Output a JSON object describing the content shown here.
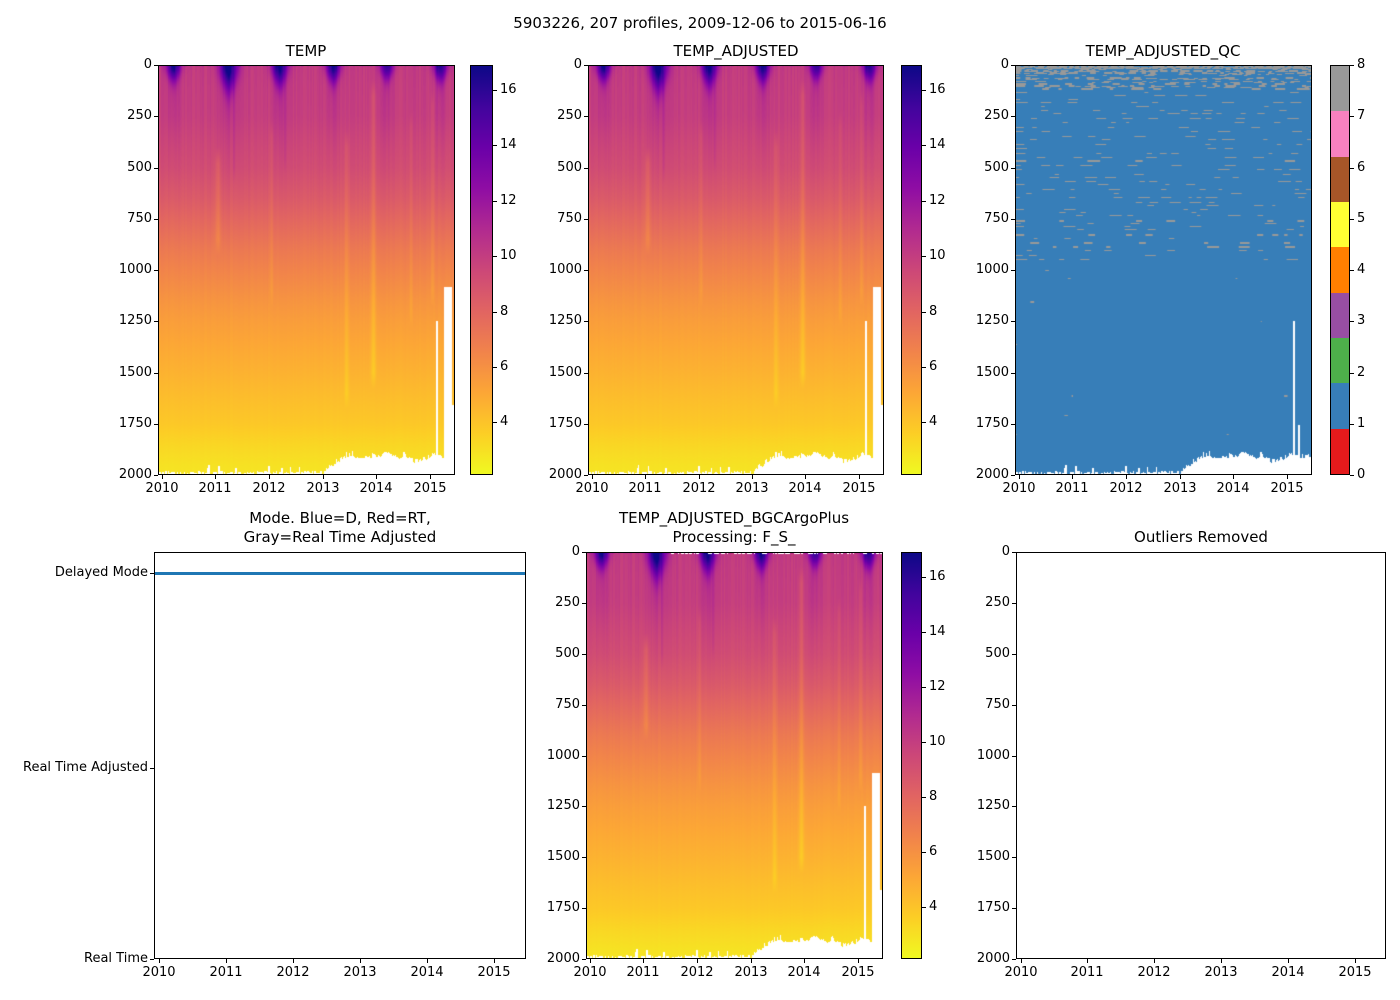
{
  "suptitle": "5903226, 207 profiles, 2009-12-06 to 2015-06-16",
  "colors": {
    "line_blue": "#1f77b4",
    "qc_base_blue": "#377eb8",
    "qc_dash_gray": "#999999",
    "axis_black": "#000000",
    "qc_colorbar_colors_bottom_to_top": [
      "#e41a1c",
      "#377eb8",
      "#4daf4a",
      "#984ea3",
      "#ff7f00",
      "#ffff33",
      "#a65628",
      "#f781bf",
      "#999999"
    ],
    "plasma_stops": [
      [
        0,
        "#0d0887"
      ],
      [
        0.1,
        "#41049d"
      ],
      [
        0.2,
        "#6a00a8"
      ],
      [
        0.3,
        "#8f0da4"
      ],
      [
        0.4,
        "#b12a90"
      ],
      [
        0.5,
        "#cc4778"
      ],
      [
        0.6,
        "#e16462"
      ],
      [
        0.7,
        "#f1834b"
      ],
      [
        0.8,
        "#fca636"
      ],
      [
        0.9,
        "#fcce25"
      ],
      [
        1,
        "#f0f921"
      ]
    ]
  },
  "chart_data": [
    {
      "id": "temp",
      "type": "heatmap",
      "title": "TEMP",
      "xlim": [
        2009.93,
        2015.47
      ],
      "x_ticks": [
        2010,
        2011,
        2012,
        2013,
        2014,
        2015
      ],
      "ylim": [
        0,
        2000
      ],
      "y_ticks": [
        0,
        250,
        500,
        750,
        1000,
        1250,
        1500,
        1750,
        2000
      ],
      "colorbar": {
        "vmin": 2.1,
        "vmax": 16.9,
        "ticks": [
          4,
          6,
          8,
          10,
          12,
          14,
          16
        ],
        "colormap": "plasma_r"
      },
      "n_profiles": 207,
      "depth_temp_profile": [
        [
          0,
          10.1
        ],
        [
          100,
          10.0
        ],
        [
          250,
          9.9
        ],
        [
          350,
          9.6
        ],
        [
          500,
          9.2
        ],
        [
          650,
          8.5
        ],
        [
          750,
          7.9
        ],
        [
          900,
          7.0
        ],
        [
          1000,
          6.5
        ],
        [
          1150,
          5.8
        ],
        [
          1250,
          5.4
        ],
        [
          1400,
          4.9
        ],
        [
          1500,
          4.6
        ],
        [
          1650,
          4.1
        ],
        [
          1750,
          3.8
        ],
        [
          1850,
          3.3
        ],
        [
          1950,
          2.9
        ],
        [
          2000,
          2.8
        ]
      ],
      "surface_seasonal": [
        {
          "year": 2010,
          "peak_time": 2010.22,
          "peak_temp": 16.2,
          "mix_depth": 75,
          "width": 0.13
        },
        {
          "year": 2011,
          "peak_time": 2011.25,
          "peak_temp": 16.9,
          "mix_depth": 115,
          "width": 0.16
        },
        {
          "year": 2012,
          "peak_time": 2012.2,
          "peak_temp": 16.5,
          "mix_depth": 92,
          "width": 0.14
        },
        {
          "year": 2013,
          "peak_time": 2013.2,
          "peak_temp": 16.3,
          "mix_depth": 80,
          "width": 0.13
        },
        {
          "year": 2014,
          "peak_time": 2014.2,
          "peak_temp": 15.3,
          "mix_depth": 68,
          "width": 0.12
        },
        {
          "year": 2015,
          "peak_time": 2015.2,
          "peak_temp": 15.9,
          "mix_depth": 74,
          "width": 0.13
        }
      ],
      "max_depth_series": [
        [
          2009.93,
          1990
        ],
        [
          2013.0,
          1985
        ],
        [
          2013.2,
          1945
        ],
        [
          2013.4,
          1905
        ],
        [
          2013.55,
          1895
        ],
        [
          2013.7,
          1925
        ],
        [
          2013.9,
          1905
        ],
        [
          2014.05,
          1915
        ],
        [
          2014.15,
          1890
        ],
        [
          2014.35,
          1915
        ],
        [
          2014.55,
          1900
        ],
        [
          2014.75,
          1935
        ],
        [
          2014.95,
          1915
        ],
        [
          2015.1,
          1900
        ],
        [
          2015.25,
          1905
        ],
        [
          2015.47,
          1900
        ]
      ],
      "gaps": [
        {
          "from": 2015.115,
          "to": 2015.15,
          "below": 1250
        },
        {
          "from": 2015.27,
          "to": 2015.42,
          "below": 1085
        },
        {
          "from": 2015.42,
          "to": 2015.47,
          "below": 1660
        }
      ],
      "anomalies": [
        {
          "t": 2011.05,
          "dT": -0.9,
          "zmin": 480,
          "zmax": 850,
          "tw": 0.05
        },
        {
          "t": 2011.35,
          "dT": 0.5,
          "zmin": 100,
          "zmax": 500,
          "tw": 0.02
        },
        {
          "t": 2012.05,
          "dT": -0.5,
          "zmin": 350,
          "zmax": 1100,
          "tw": 0.03
        },
        {
          "t": 2012.3,
          "dT": 0.4,
          "zmin": 100,
          "zmax": 450,
          "tw": 0.02
        },
        {
          "t": 2013.45,
          "dT": -0.7,
          "zmin": 400,
          "zmax": 1600,
          "tw": 0.04
        },
        {
          "t": 2013.95,
          "dT": -0.9,
          "zmin": 150,
          "zmax": 1500,
          "tw": 0.05
        },
        {
          "t": 2014.65,
          "dT": -0.5,
          "zmin": 300,
          "zmax": 1200,
          "tw": 0.03
        },
        {
          "t": 2015.05,
          "dT": -0.6,
          "zmin": 200,
          "zmax": 1100,
          "tw": 0.03
        }
      ]
    },
    {
      "id": "temp_adjusted",
      "type": "heatmap",
      "title": "TEMP_ADJUSTED",
      "data_ref": "temp",
      "xlim": [
        2009.93,
        2015.47
      ],
      "x_ticks": [
        2010,
        2011,
        2012,
        2013,
        2014,
        2015
      ],
      "ylim": [
        0,
        2000
      ],
      "y_ticks": [
        0,
        250,
        500,
        750,
        1000,
        1250,
        1500,
        1750,
        2000
      ],
      "colorbar": {
        "vmin": 2.1,
        "vmax": 16.9,
        "ticks": [
          4,
          6,
          8,
          10,
          12,
          14,
          16
        ],
        "colormap": "plasma_r"
      }
    },
    {
      "id": "qc",
      "type": "heatmap-categorical",
      "title": "TEMP_ADJUSTED_QC",
      "xlim": [
        2009.93,
        2015.47
      ],
      "x_ticks": [
        2010,
        2011,
        2012,
        2013,
        2014,
        2015
      ],
      "ylim": [
        0,
        2000
      ],
      "y_ticks": [
        0,
        250,
        500,
        750,
        1000,
        1250,
        1500,
        1750,
        2000
      ],
      "colorbar": {
        "vmin": 0,
        "vmax": 8,
        "ticks": [
          0,
          1,
          2,
          3,
          4,
          5,
          6,
          7,
          8
        ],
        "n_segments": 9
      },
      "pattern": {
        "base_flag": 1,
        "dash_flag": 8,
        "dense_top_depth": 110,
        "dash_zone_depth": 958,
        "sparse_dash_depths": [
          1000,
          1040,
          1075,
          1150,
          1250,
          1360,
          1430,
          1550,
          1610,
          1660,
          1705,
          1800,
          1860
        ]
      },
      "gaps": [
        {
          "from": 2015.115,
          "to": 2015.15,
          "below": 1250
        },
        {
          "from": 2015.21,
          "to": 2015.24,
          "below": 1755
        }
      ]
    },
    {
      "id": "mode",
      "type": "line",
      "title": "Mode. Blue=D, Red=RT,\nGray=Real Time Adjusted",
      "xlim": [
        2009.93,
        2015.47
      ],
      "x_ticks": [
        2010,
        2011,
        2012,
        2013,
        2014,
        2015
      ],
      "y_categories": [
        "Delayed Mode",
        "Real Time Adjusted",
        "Real Time"
      ],
      "series": [
        {
          "name": "mode",
          "color": "#1f77b4",
          "value_for_all_profiles": "Delayed Mode",
          "x_range": [
            2009.93,
            2015.47
          ]
        }
      ]
    },
    {
      "id": "bgc",
      "type": "heatmap",
      "title": "TEMP_ADJUSTED_BGCArgoPlus\nProcessing: F_S_",
      "data_ref": "temp",
      "xlim": [
        2009.93,
        2015.47
      ],
      "x_ticks": [
        2010,
        2011,
        2012,
        2013,
        2014,
        2015
      ],
      "ylim": [
        0,
        2000
      ],
      "y_ticks": [
        0,
        250,
        500,
        750,
        1000,
        1250,
        1500,
        1750,
        2000
      ],
      "colorbar": {
        "vmin": 2.1,
        "vmax": 16.9,
        "ticks": [
          4,
          6,
          8,
          10,
          12,
          14,
          16
        ],
        "colormap": "plasma_r"
      },
      "surface_gaps": {
        "after": 2011.5,
        "fraction": 0.52,
        "depth": 9
      }
    },
    {
      "id": "outliers",
      "type": "heatmap",
      "title": "Outliers Removed",
      "empty": true,
      "xlim": [
        2009.93,
        2015.47
      ],
      "x_ticks": [
        2010,
        2011,
        2012,
        2013,
        2014,
        2015
      ],
      "ylim": [
        0,
        2000
      ],
      "y_ticks": [
        0,
        250,
        500,
        750,
        1000,
        1250,
        1500,
        1750,
        2000
      ]
    }
  ]
}
